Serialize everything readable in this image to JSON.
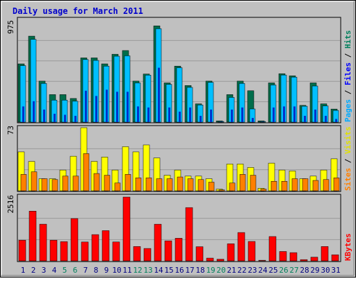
{
  "chart_data": [
    {
      "type": "bar",
      "title": "Daily usage for March 2011",
      "ymax_label": "975",
      "legend": [
        {
          "label": "Pages",
          "color": "#0033CC"
        },
        {
          "label": "/",
          "color": "#000000"
        },
        {
          "label": "Files",
          "color": "#0000FF"
        },
        {
          "label": "/",
          "color": "#000000"
        },
        {
          "label": "Hits",
          "color": "#009966"
        }
      ],
      "categories": [
        "1",
        "2",
        "3",
        "4",
        "5",
        "6",
        "7",
        "8",
        "9",
        "10",
        "11",
        "12",
        "13",
        "14",
        "15",
        "16",
        "17",
        "18",
        "19",
        "20",
        "21",
        "22",
        "23",
        "24",
        "25",
        "26",
        "27",
        "28",
        "29",
        "30",
        "31"
      ],
      "series": [
        {
          "name": "Hits",
          "color": "#006E4B",
          "values": [
            557,
            822,
            392,
            263,
            263,
            226,
            614,
            614,
            557,
            649,
            684,
            392,
            460,
            920,
            375,
            535,
            350,
            175,
            392,
            12,
            263,
            392,
            300,
            12,
            375,
            463,
            443,
            160,
            375,
            175,
            125
          ]
        },
        {
          "name": "Files",
          "color": "#00BFFF",
          "values": [
            540,
            791,
            370,
            210,
            210,
            200,
            598,
            590,
            535,
            630,
            634,
            375,
            449,
            893,
            361,
            520,
            332,
            164,
            380,
            6,
            236,
            370,
            126,
            6,
            355,
            450,
            430,
            152,
            345,
            155,
            112
          ]
        },
        {
          "name": "Pages",
          "color": "#0033CC",
          "values": [
            150,
            200,
            120,
            80,
            70,
            60,
            300,
            250,
            310,
            290,
            290,
            150,
            140,
            520,
            140,
            100,
            140,
            60,
            120,
            2,
            120,
            140,
            40,
            2,
            140,
            150,
            150,
            60,
            120,
            60,
            30
          ]
        }
      ]
    },
    {
      "type": "bar",
      "ymax_label": "73",
      "legend": [
        {
          "label": "Sites",
          "color": "#FF8000"
        },
        {
          "label": "/",
          "color": "#000000"
        },
        {
          "label": "Visits",
          "color": "#FFFF00"
        }
      ],
      "categories": [
        "1",
        "2",
        "3",
        "4",
        "5",
        "6",
        "7",
        "8",
        "9",
        "10",
        "11",
        "12",
        "13",
        "14",
        "15",
        "16",
        "17",
        "18",
        "19",
        "20",
        "21",
        "22",
        "23",
        "24",
        "25",
        "26",
        "27",
        "28",
        "29",
        "30",
        "31"
      ],
      "series": [
        {
          "name": "Visits",
          "color": "#FFFF00",
          "values": [
            45,
            34,
            14,
            14,
            24,
            40,
            73,
            34,
            39,
            24,
            51,
            45,
            53,
            38,
            18,
            24,
            17,
            17,
            14,
            2,
            31,
            31,
            27,
            3,
            32,
            24,
            23,
            14,
            17,
            24,
            37
          ]
        },
        {
          "name": "Sites",
          "color": "#FF8000",
          "values": [
            19,
            22,
            14,
            13,
            17,
            17,
            43,
            20,
            18,
            9,
            19,
            15,
            15,
            14,
            14,
            16,
            14,
            13,
            10,
            1,
            9,
            19,
            18,
            2,
            11,
            11,
            14,
            14,
            12,
            13,
            15
          ]
        }
      ]
    },
    {
      "type": "bar",
      "ymax_label": "2516",
      "legend": [
        {
          "label": "KBytes",
          "color": "#FF0000"
        }
      ],
      "categories": [
        "1",
        "2",
        "3",
        "4",
        "5",
        "6",
        "7",
        "8",
        "9",
        "10",
        "11",
        "12",
        "13",
        "14",
        "15",
        "16",
        "17",
        "18",
        "19",
        "20",
        "21",
        "22",
        "23",
        "24",
        "25",
        "26",
        "27",
        "28",
        "29",
        "30",
        "31"
      ],
      "series": [
        {
          "name": "KBytes",
          "color": "#FF0000",
          "values": [
            816,
            1961,
            1447,
            816,
            759,
            1668,
            744,
            1036,
            1192,
            746,
            2516,
            566,
            490,
            1446,
            790,
            892,
            2101,
            559,
            109,
            66,
            674,
            1118,
            766,
            24,
            959,
            370,
            325,
            50,
            147,
            566,
            241
          ]
        }
      ]
    }
  ],
  "x_axis": {
    "labels": [
      "1",
      "2",
      "3",
      "4",
      "5",
      "6",
      "7",
      "8",
      "9",
      "10",
      "11",
      "12",
      "13",
      "14",
      "15",
      "16",
      "17",
      "18",
      "19",
      "20",
      "21",
      "22",
      "23",
      "24",
      "25",
      "26",
      "27",
      "28",
      "29",
      "30",
      "31"
    ],
    "weekend_days": [
      5,
      6,
      12,
      13,
      19,
      20,
      26,
      27
    ],
    "weekday_color": "#000080",
    "weekend_color": "#00805C"
  },
  "colors": {
    "background": "#C0C0C0",
    "panel": "#C0C0C0",
    "grid": "#808080",
    "title": "#0000CC"
  }
}
